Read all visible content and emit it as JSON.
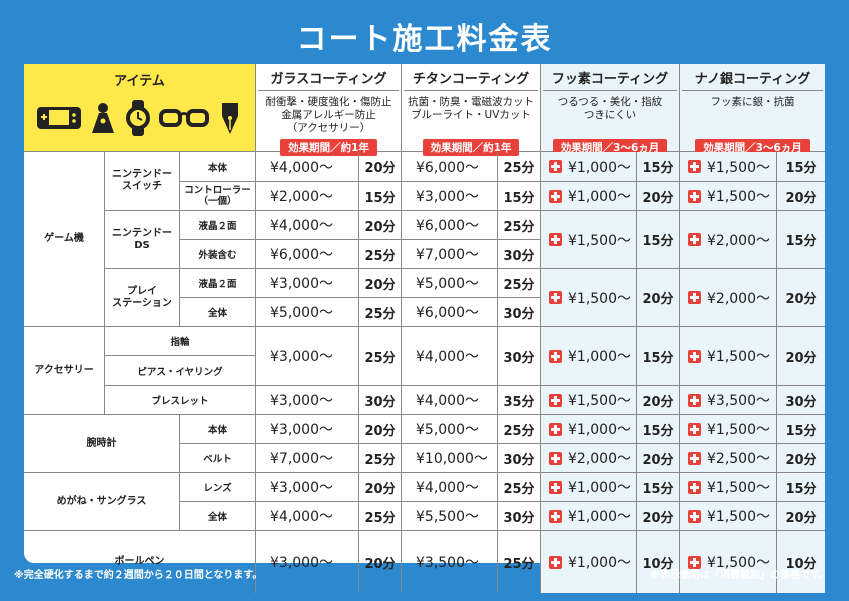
{
  "title": "コート施工料金表",
  "header": {
    "item_label": "アイテム",
    "icons": [
      "game-console-icon",
      "accessory-bust-icon",
      "wristwatch-icon",
      "glasses-icon",
      "fountain-pen-icon"
    ],
    "coatings": [
      {
        "name": "ガラスコーティング",
        "desc": "耐衝撃・硬度強化・傷防止\n金属アレルギー防止\n（アクセサリー）",
        "badge": "効果期間／約1年"
      },
      {
        "name": "チタンコーティング",
        "desc": "抗菌・防臭・電磁波カット\nブルーライト・UVカット",
        "badge": "効果期間／約1年"
      },
      {
        "name": "フッ素コーティング",
        "desc": "つるつる・美化・指紋\nつきにくい",
        "badge": "効果期間／3〜6ヵ月"
      },
      {
        "name": "ナノ銀コーティング",
        "desc": "フッ素に銀・抗菌",
        "badge": "効果期間／3〜6ヵ月"
      }
    ]
  },
  "categories": {
    "game": "ゲーム機",
    "switch": "ニンテンドー\nスイッチ",
    "ds": "ニンテンドー\nDS",
    "ps": "プレイ\nステーション",
    "accessory": "アクセサリー",
    "watch": "腕時計",
    "glasses": "めがね・サングラス",
    "pen": "ボールペン"
  },
  "subs": {
    "body": "本体",
    "controller": "コントローラー\n（一個）",
    "lcd2": "液晶２面",
    "exterior": "外装含む",
    "all": "全体",
    "ring": "指輪",
    "pierce": "ピアス・イヤリング",
    "bracelet": "ブレスレット",
    "belt": "ベルト",
    "lens": "レンズ"
  },
  "prices": {
    "r1": {
      "g": "¥4,000〜",
      "gt": "20分",
      "t": "¥6,000〜",
      "tt": "25分",
      "f": "¥1,000〜",
      "ft": "15分",
      "n": "¥1,500〜",
      "nt": "15分"
    },
    "r2": {
      "g": "¥2,000〜",
      "gt": "15分",
      "t": "¥3,000〜",
      "tt": "15分",
      "f": "¥1,000〜",
      "ft": "20分",
      "n": "¥1,500〜",
      "nt": "20分"
    },
    "r3": {
      "g": "¥4,000〜",
      "gt": "20分",
      "t": "¥6,000〜",
      "tt": "25分"
    },
    "r4": {
      "g": "¥6,000〜",
      "gt": "25分",
      "t": "¥7,000〜",
      "tt": "30分"
    },
    "ds_fn": {
      "f": "¥1,500〜",
      "ft": "15分",
      "n": "¥2,000〜",
      "nt": "15分"
    },
    "r5": {
      "g": "¥3,000〜",
      "gt": "20分",
      "t": "¥5,000〜",
      "tt": "25分"
    },
    "r6": {
      "g": "¥5,000〜",
      "gt": "25分",
      "t": "¥6,000〜",
      "tt": "30分"
    },
    "ps_fn": {
      "f": "¥1,500〜",
      "ft": "20分",
      "n": "¥2,000〜",
      "nt": "20分"
    },
    "acc": {
      "g": "¥3,000〜",
      "gt": "25分",
      "t": "¥4,000〜",
      "tt": "30分",
      "f": "¥1,000〜",
      "ft": "15分",
      "n": "¥1,500〜",
      "nt": "20分"
    },
    "brace": {
      "g": "¥3,000〜",
      "gt": "30分",
      "t": "¥4,000〜",
      "tt": "35分",
      "f": "¥1,500〜",
      "ft": "20分",
      "n": "¥3,500〜",
      "nt": "30分"
    },
    "wbody": {
      "g": "¥3,000〜",
      "gt": "20分",
      "t": "¥5,000〜",
      "tt": "25分",
      "f": "¥1,000〜",
      "ft": "15分",
      "n": "¥1,500〜",
      "nt": "15分"
    },
    "wbelt": {
      "g": "¥7,000〜",
      "gt": "25分",
      "t": "¥10,000〜",
      "tt": "30分",
      "f": "¥2,000〜",
      "ft": "20分",
      "n": "¥2,500〜",
      "nt": "20分"
    },
    "lens": {
      "g": "¥3,000〜",
      "gt": "20分",
      "t": "¥4,000〜",
      "tt": "25分",
      "f": "¥1,000〜",
      "ft": "15分",
      "n": "¥1,500〜",
      "nt": "15分"
    },
    "gall": {
      "g": "¥4,000〜",
      "gt": "25分",
      "t": "¥5,500〜",
      "tt": "30分",
      "f": "¥1,000〜",
      "ft": "20分",
      "n": "¥1,500〜",
      "nt": "20分"
    },
    "pen": {
      "g": "¥3,000〜",
      "gt": "20分",
      "t": "¥3,500〜",
      "tt": "25分",
      "f": "¥1,000〜",
      "ft": "10分",
      "n": "¥1,500〜",
      "nt": "10分"
    }
  },
  "footer": {
    "left": "※完全硬化するまで約２週間から２０日間となります。",
    "right": "※表示価格は「消費税別」の価格です。"
  },
  "colors": {
    "background": "#2c89cf",
    "header_yellow": "#ffe84a",
    "badge_red": "#e8413a"
  }
}
